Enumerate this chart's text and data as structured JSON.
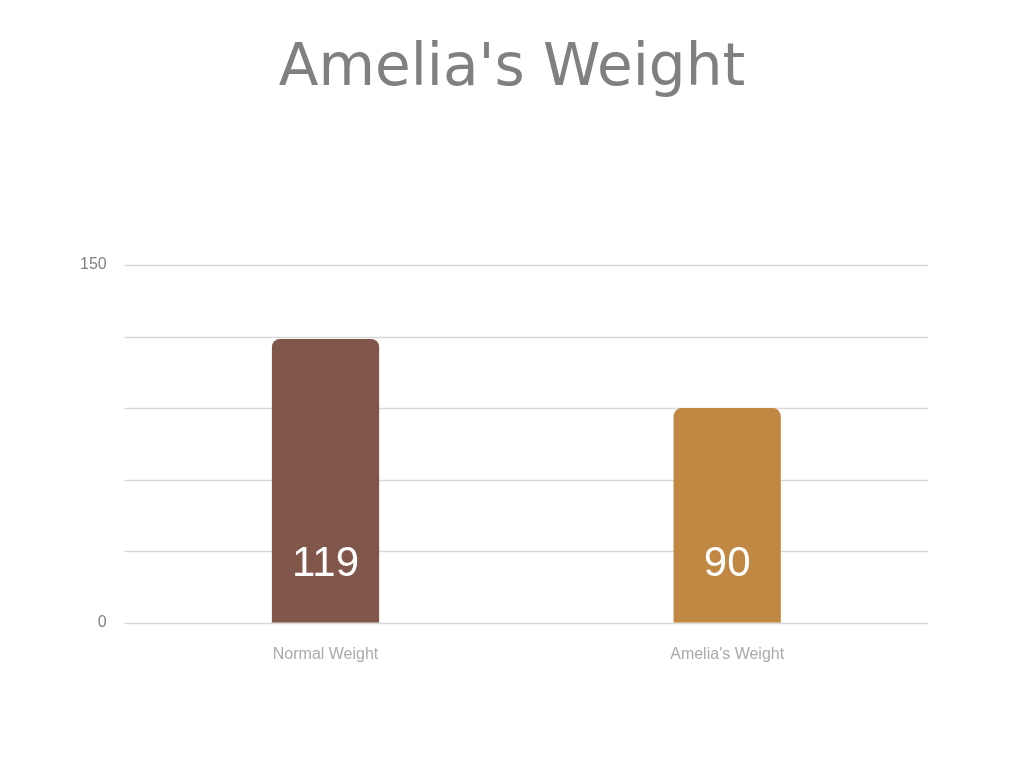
{
  "chart_data": {
    "type": "bar",
    "title": "Amelia's Weight",
    "categories": [
      "Normal Weight",
      "Amelia's Weight"
    ],
    "values": [
      119,
      90
    ],
    "colors": [
      "#80574a",
      "#c08843"
    ],
    "ylim": [
      0,
      150
    ],
    "yticks": [
      0,
      {
        "value": 30,
        "label": null
      },
      {
        "value": 60,
        "label": null
      },
      {
        "value": 90,
        "label": null
      },
      {
        "value": 120,
        "label": null
      },
      150
    ],
    "grid": true,
    "data_labels": true
  }
}
